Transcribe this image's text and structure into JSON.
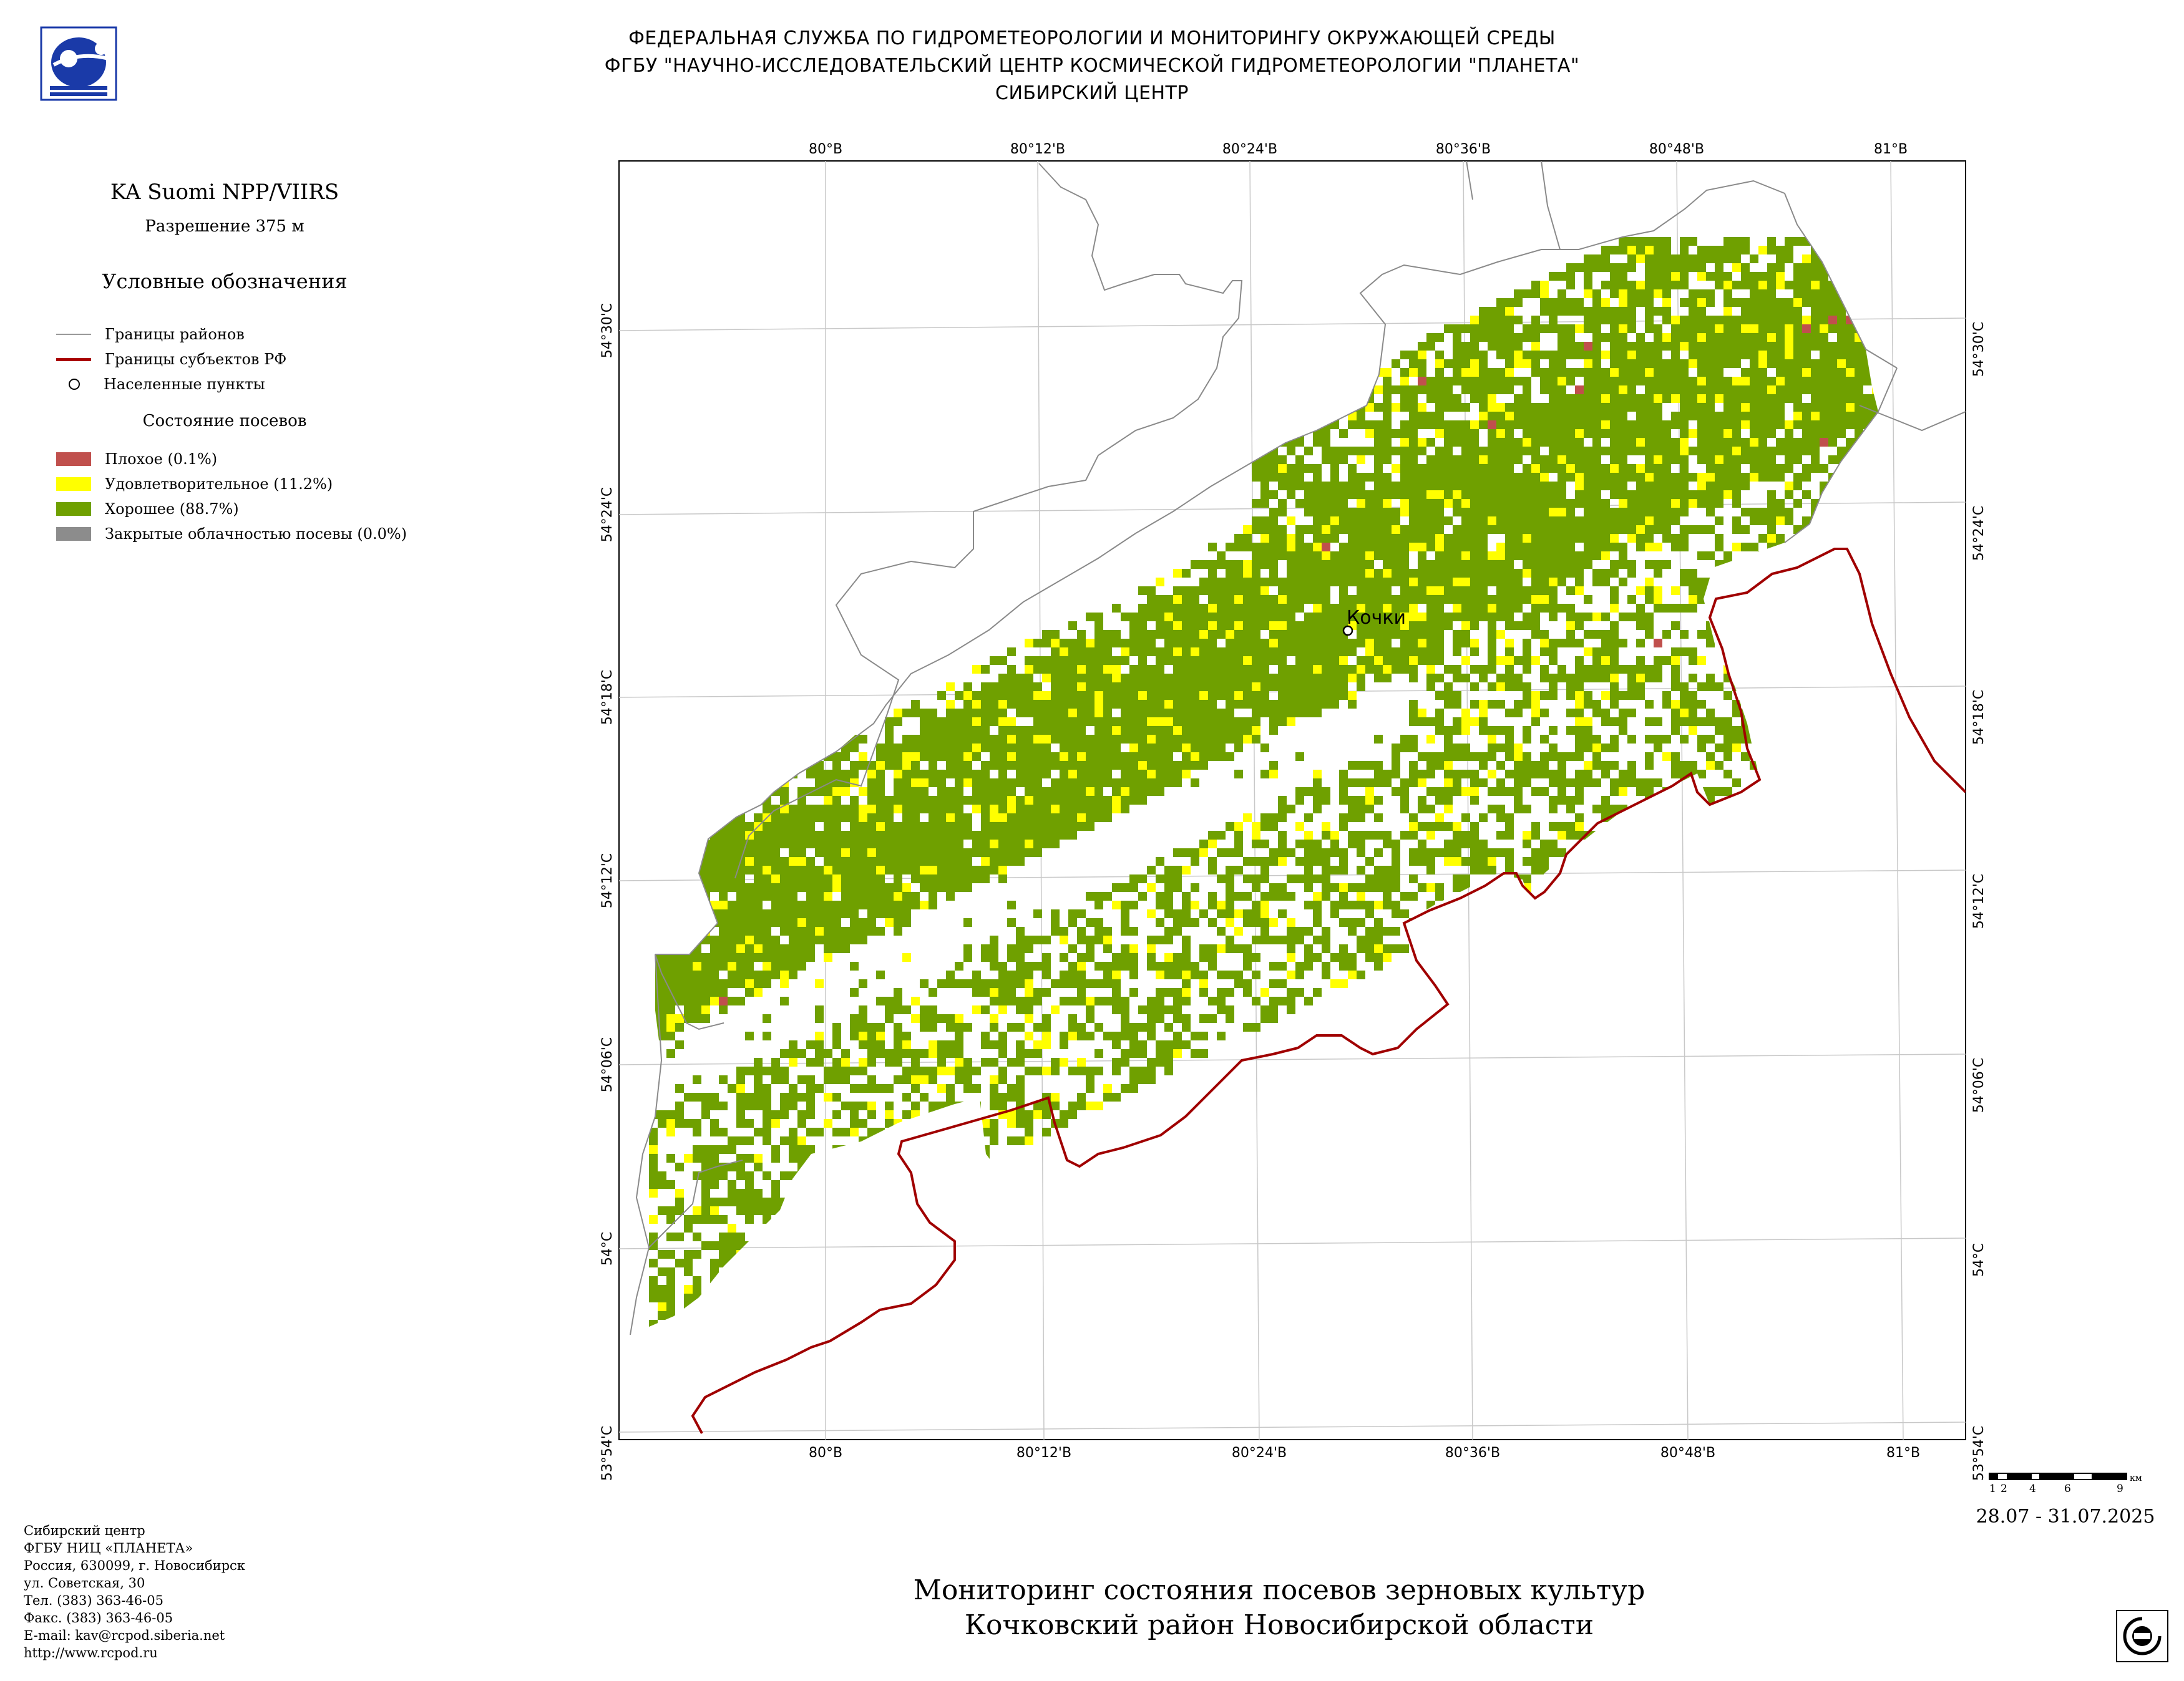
{
  "header": {
    "line1": "ФЕДЕРАЛЬНАЯ СЛУЖБА ПО ГИДРОМЕТЕОРОЛОГИИ И МОНИТОРИНГУ ОКРУЖАЮЩЕЙ СРЕДЫ",
    "line2": "ФГБУ \"НАУЧНО-ИССЛЕДОВАТЕЛЬСКИЙ ЦЕНТР КОСМИЧЕСКОЙ ГИДРОМЕТЕОРОЛОГИИ \"ПЛАНЕТА\"",
    "line3": "СИБИРСКИЙ ЦЕНТР"
  },
  "satellite": {
    "name": "KA Suomi NPP/VIIRS",
    "resolution": "Разрешение 375 м"
  },
  "legend": {
    "title": "Условные обозначения",
    "district_borders": "Границы районов",
    "subject_borders": "Границы субъектов РФ",
    "settlements": "Населенные пункты",
    "crop_title": "Состояние посевов",
    "items": [
      {
        "label": "Плохое (0.1%)",
        "color": "#c0504d",
        "percent": 0.1
      },
      {
        "label": "Удовлетворительное (11.2%)",
        "color": "#ffff00",
        "percent": 11.2
      },
      {
        "label": "Хорошее (88.7%)",
        "color": "#6fa000",
        "percent": 88.7
      },
      {
        "label": "Закрытые облачностью посевы (0.0%)",
        "color": "#8c8c8c",
        "percent": 0.0
      }
    ],
    "district_color": "#999999",
    "subject_color": "#aa0000"
  },
  "map": {
    "top_labels": [
      "80°В",
      "80°12'В",
      "80°24'В",
      "80°36'В",
      "80°48'В",
      "81°В"
    ],
    "bottom_labels": [
      "80°В",
      "80°12'В",
      "80°24'В",
      "80°36'В",
      "80°48'В",
      "81°В"
    ],
    "left_labels": [
      "54°30'С",
      "54°24'С",
      "54°18'С",
      "54°12'С",
      "54°06'С",
      "54°С",
      "53°54'С"
    ],
    "right_labels": [
      "54°30'С",
      "54°24'С",
      "54°18'С",
      "54°12'С",
      "54°06'С",
      "54°С",
      "53°54'С"
    ],
    "settlement": "Кочки"
  },
  "scale": {
    "numbers": [
      "1",
      "2",
      "4",
      "6",
      "9"
    ],
    "unit": "км"
  },
  "date_range": "28.07 - 31.07.2025",
  "contacts": [
    "Сибирский центр",
    "ФГБУ НИЦ «ПЛАНЕТА»",
    "Россия, 630099, г. Новосибирск",
    "ул. Советская, 30",
    "Тел. (383) 363-46-05",
    "Факс. (383) 363-46-05",
    "E-mail: kav@rcpod.siberia.net",
    "http://www.rcpod.ru"
  ],
  "title": {
    "line1": "Мониторинг состояния посевов зерновых культур",
    "line2": "Кочковский район Новосибирской области"
  }
}
